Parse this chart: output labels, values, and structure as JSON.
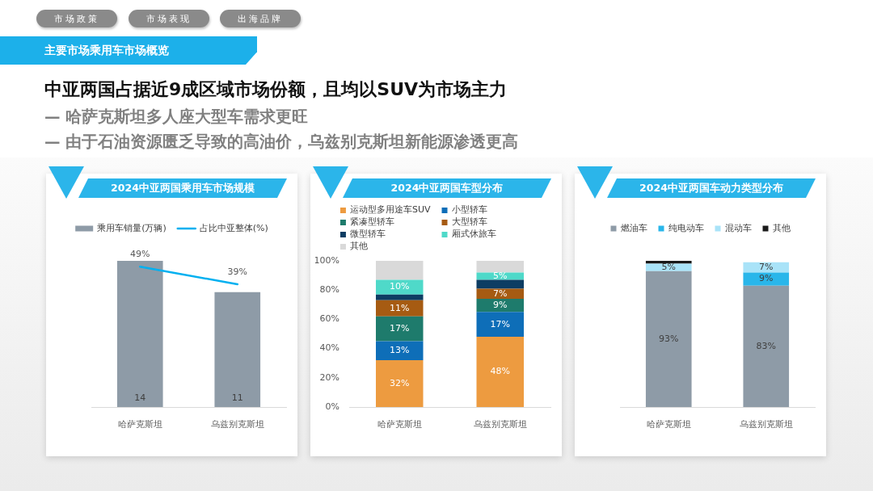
{
  "chart_data": [
    {
      "type": "other",
      "title": "中亚两国占据近9成区域市场份额，且均以SUV为市场主力",
      "subtitle": "— 哈萨克斯坦多人座大型车需求更旺\n— 由于石油资源匮乏导致的高油价，乌兹别克斯坦新能源渗透更高",
      "annotations": [
        "市场政策",
        "市场表现",
        "出海品牌",
        "主要市场乘用车市场概览"
      ]
    },
    {
      "type": "bar",
      "title": "2024中亚两国乘用车市场规模",
      "categories": [
        "哈萨克斯坦",
        "乌兹别克斯坦"
      ],
      "series": [
        {
          "name": "乘用车销量(万辆)",
          "type": "bar",
          "color": "#8e9ba7",
          "values": [
            14,
            11
          ],
          "value_labels": [
            "14",
            "11"
          ]
        },
        {
          "name": "占比中亚整体(%)",
          "type": "line",
          "axis": "y2",
          "color": "#00b0f0",
          "values": [
            49,
            39
          ],
          "value_labels": [
            "49%",
            "39%"
          ]
        }
      ],
      "tick_labels": "x",
      "legend": "top",
      "grid": false,
      "marker": "none"
    },
    {
      "type": "bar",
      "title": "2024中亚两国车型分布",
      "categories": [
        "哈萨克斯坦",
        "乌兹别克斯坦"
      ],
      "stacked": true,
      "series": [
        {
          "name": "运动型多用途车SUV",
          "color": "#ed9b40",
          "values": [
            32,
            48
          ],
          "value_labels": [
            "32%",
            "48%"
          ]
        },
        {
          "name": "小型轿车",
          "color": "#0e6eb8",
          "values": [
            13,
            17
          ],
          "value_labels": [
            "13%",
            "17%"
          ]
        },
        {
          "name": "紧凑型轿车",
          "color": "#1e7b6c",
          "values": [
            17,
            9
          ],
          "value_labels": [
            "17%",
            "9%"
          ]
        },
        {
          "name": "大型轿车",
          "color": "#a65b12",
          "values": [
            11,
            7
          ],
          "value_labels": [
            "11%",
            "7%"
          ]
        },
        {
          "name": "微型轿车",
          "color": "#0d3d63",
          "values": [
            4,
            6
          ]
        },
        {
          "name": "厢式休旅车",
          "color": "#4fd9c9",
          "values": [
            10,
            5
          ],
          "value_labels": [
            "10%",
            "5%"
          ]
        },
        {
          "name": "其他",
          "color": "#d9d9d9",
          "values": [
            13,
            8
          ]
        }
      ],
      "ylim": [
        0,
        100
      ],
      "yticks": [
        {
          "value": 0,
          "label": "0%"
        },
        {
          "value": 20,
          "label": "20%"
        },
        {
          "value": 40,
          "label": "40%"
        },
        {
          "value": 60,
          "label": "60%"
        },
        {
          "value": 80,
          "label": "80%"
        },
        {
          "value": 100,
          "label": "100%"
        }
      ],
      "legend": "top",
      "grid": false
    },
    {
      "type": "bar",
      "title": "2024中亚两国车动力类型分布",
      "categories": [
        "哈萨克斯坦",
        "乌兹别克斯坦"
      ],
      "stacked": true,
      "series": [
        {
          "name": "燃油车",
          "color": "#8e9ba7",
          "values": [
            93,
            83
          ],
          "value_labels": [
            "93%",
            "83%"
          ]
        },
        {
          "name": "纯电动车",
          "color": "#29b6ea",
          "values": [
            null,
            9
          ],
          "value_labels": [
            null,
            "9%"
          ]
        },
        {
          "name": "混动车",
          "color": "#a9e3f8",
          "values": [
            5,
            7
          ],
          "value_labels": [
            "5%",
            "7%"
          ]
        },
        {
          "name": "其他",
          "color": "#1a1a1a",
          "values": [
            2,
            null
          ]
        }
      ],
      "ylim": [
        0,
        100
      ],
      "tick_labels": "x",
      "legend": "top",
      "grid": false
    }
  ]
}
